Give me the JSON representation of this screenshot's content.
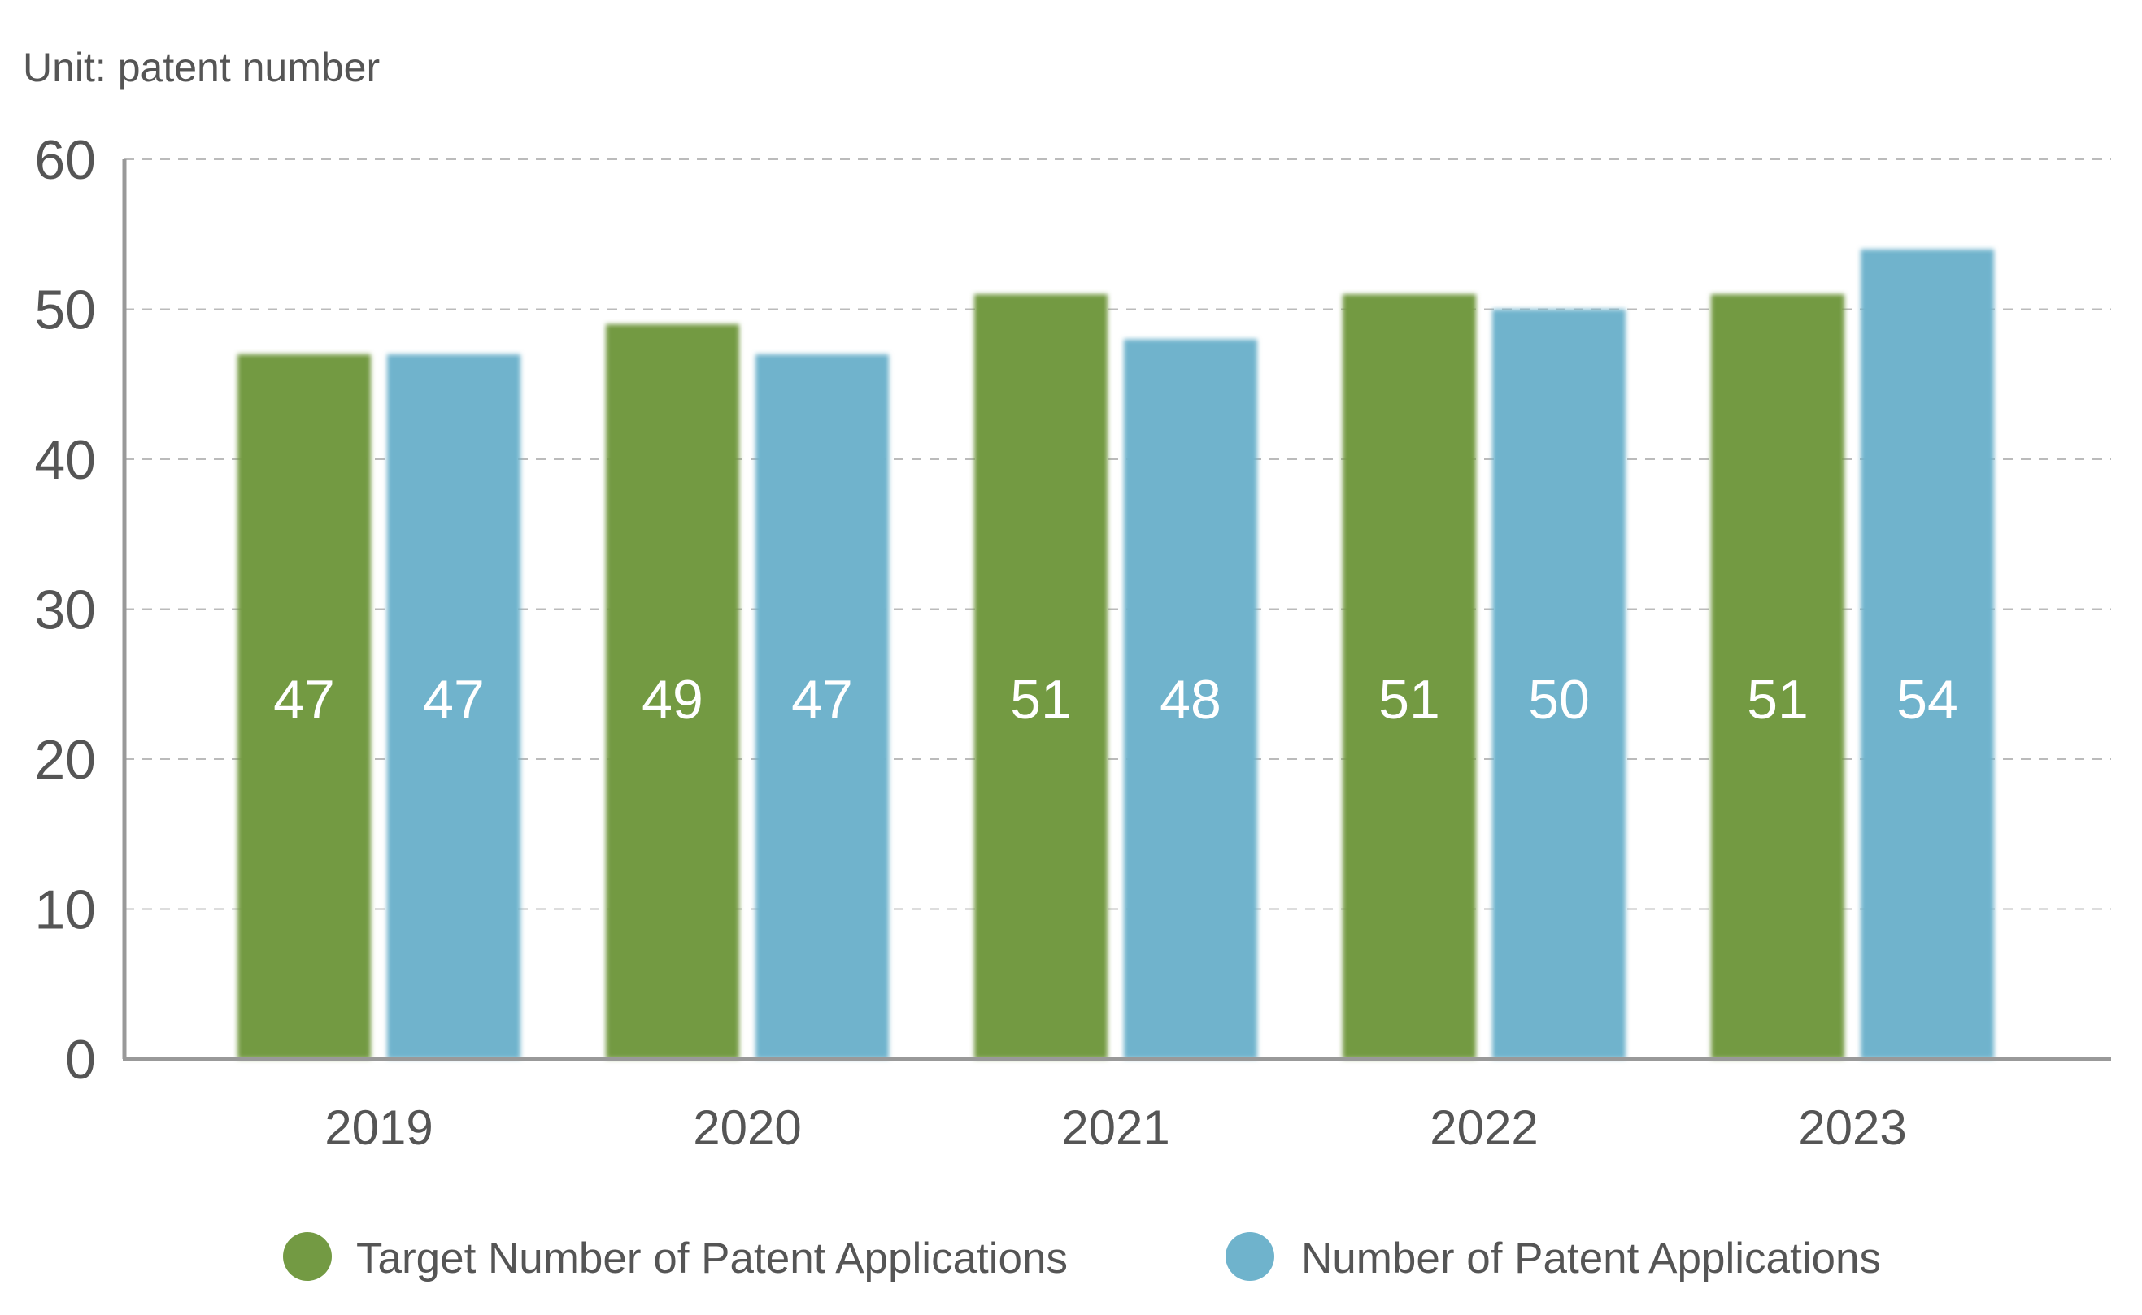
{
  "unit_label": "Unit: patent number",
  "colors": {
    "target": "#739a43",
    "actual": "#6fb3cc",
    "axis": "#999999",
    "grid": "#bbbbbb",
    "text": "#555555"
  },
  "chart_data": {
    "type": "bar",
    "categories": [
      "2019",
      "2020",
      "2021",
      "2022",
      "2023"
    ],
    "series": [
      {
        "name": "Target Number of Patent Applications",
        "values": [
          47,
          49,
          51,
          51,
          51
        ]
      },
      {
        "name": "Number of Patent Applications",
        "values": [
          47,
          47,
          48,
          50,
          54
        ]
      }
    ],
    "yticks": [
      "0",
      "10",
      "20",
      "30",
      "40",
      "50",
      "60"
    ],
    "ylim": [
      0,
      60
    ],
    "xlabel": "",
    "ylabel": "",
    "grid": true,
    "legend_position": "bottom"
  }
}
